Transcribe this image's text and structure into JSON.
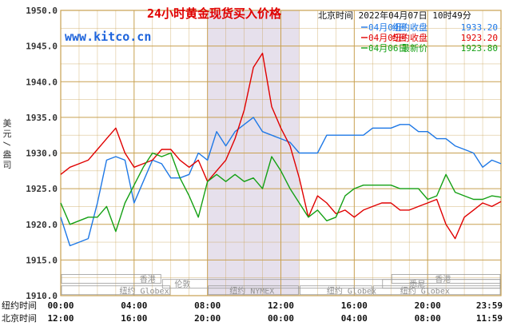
{
  "chart_data": {
    "type": "line",
    "title": "24小时黄金现货买入价格",
    "timestamp": "北京时间  2022年04月07日 10时49分",
    "watermark": "www.kitco.cn",
    "ylabel": "美元/盎司",
    "ylim": [
      1910,
      1950
    ],
    "yticks": [
      "1950.0",
      "1945.0",
      "1940.0",
      "1935.0",
      "1930.0",
      "1925.0",
      "1920.0",
      "1915.0",
      "1910.0"
    ],
    "x_axis_rows": [
      {
        "label": "纽约时间",
        "ticks": [
          "00:00",
          "04:00",
          "08:00",
          "12:00",
          "16:00",
          "20:00",
          "23:59"
        ]
      },
      {
        "label": "北京时间",
        "ticks": [
          "12:00",
          "16:00",
          "20:00",
          "00:00",
          "04:00",
          "08:00",
          "11:59"
        ]
      }
    ],
    "market_labels": [
      "香港",
      "伦敦",
      "纽约 Globex",
      "纽约 NYMEX",
      "纽约 Globex",
      "香港",
      "悉尼",
      "纽约 Globex"
    ],
    "grid": true,
    "legend_position": "top-right",
    "colors": {
      "border": "#c8a050",
      "grid": "#c8a050",
      "shade": "#e6e0ec",
      "title": "#e00000",
      "watermark": "#1e64dc"
    },
    "series": [
      {
        "legend": "04月04日",
        "legend_type": "纽约收盘",
        "legend_value": "1933.20",
        "color": "#1e78e6",
        "x": [
          0,
          0.5,
          1,
          1.5,
          2,
          2.5,
          3,
          3.5,
          4,
          4.5,
          5,
          5.5,
          6,
          6.5,
          7,
          7.5,
          8,
          8.5,
          9,
          9.5,
          10,
          10.5,
          11,
          11.5,
          12,
          12.5,
          13,
          13.5,
          14,
          14.5,
          15,
          15.5,
          16,
          16.5,
          17,
          17.5,
          18,
          18.5,
          19,
          19.5,
          20,
          20.5,
          21,
          21.5,
          22,
          22.5,
          23,
          23.5,
          24
        ],
        "y": [
          1921,
          1917,
          1917.5,
          1918,
          1923,
          1929,
          1929.5,
          1929,
          1923,
          1926,
          1929,
          1928.5,
          1926.5,
          1926.5,
          1927,
          1930,
          1929,
          1933,
          1931,
          1933,
          1934,
          1935,
          1933,
          1932.5,
          1932,
          1931.5,
          1930,
          1930,
          1930,
          1932.5,
          1932.5,
          1932.5,
          1932.5,
          1932.5,
          1933.5,
          1933.5,
          1933.5,
          1934,
          1934,
          1933,
          1933,
          1932,
          1932,
          1931,
          1930.5,
          1930,
          1928,
          1929,
          1928.5
        ]
      },
      {
        "legend": "04月05日",
        "legend_type": "纽约收盘",
        "legend_value": "1923.20",
        "color": "#e00000",
        "x": [
          0,
          0.5,
          1,
          1.5,
          2,
          2.5,
          3,
          3.5,
          4,
          4.5,
          5,
          5.5,
          6,
          6.5,
          7,
          7.5,
          8,
          8.5,
          9,
          9.5,
          10,
          10.5,
          11,
          11.5,
          12,
          12.5,
          13,
          13.5,
          14,
          14.5,
          15,
          15.5,
          16,
          16.5,
          17,
          17.5,
          18,
          18.5,
          19,
          19.5,
          20,
          20.5,
          21,
          21.5,
          22,
          22.5,
          23,
          23.5,
          24
        ],
        "y": [
          1927,
          1928,
          1928.5,
          1929,
          1930.5,
          1932,
          1933.5,
          1930,
          1928,
          1928.5,
          1929,
          1930.5,
          1930.5,
          1929,
          1928,
          1929,
          1926,
          1927.5,
          1929,
          1932,
          1936,
          1942,
          1944,
          1936.5,
          1933.5,
          1931,
          1926.5,
          1921,
          1924,
          1923,
          1921.5,
          1922,
          1921,
          1922,
          1922.5,
          1923,
          1923,
          1922,
          1922,
          1922.5,
          1923,
          1923.5,
          1920,
          1918,
          1921,
          1922,
          1923,
          1922.5,
          1923.2
        ]
      },
      {
        "legend": "04月06日",
        "legend_type": "最新价",
        "legend_value": "1923.80",
        "color": "#14a014",
        "x": [
          0,
          0.5,
          1,
          1.5,
          2,
          2.5,
          3,
          3.5,
          4,
          4.5,
          5,
          5.5,
          6,
          6.5,
          7,
          7.5,
          8,
          8.5,
          9,
          9.5,
          10,
          10.5,
          11,
          11.5,
          12,
          12.5,
          13,
          13.5,
          14,
          14.5,
          15,
          15.5,
          16,
          16.5,
          17,
          17.5,
          18,
          18.5,
          19,
          19.5,
          20,
          20.5,
          21,
          21.5,
          22,
          22.5,
          23,
          23.5,
          24
        ],
        "y": [
          1923,
          1920,
          1920.5,
          1921,
          1921,
          1922.5,
          1919,
          1923,
          1925.5,
          1928,
          1930,
          1929.5,
          1930,
          1926.5,
          1924,
          1921,
          1926,
          1927,
          1926,
          1927,
          1926,
          1926.5,
          1925,
          1929.5,
          1927.5,
          1925,
          1923,
          1921,
          1922,
          1920.5,
          1921,
          1924,
          1925,
          1925.5,
          1925.5,
          1925.5,
          1925.5,
          1925,
          1925,
          1925,
          1923.5,
          1924,
          1927,
          1924.5,
          1924,
          1923.5,
          1923.5,
          1924,
          1923.8
        ]
      }
    ]
  }
}
